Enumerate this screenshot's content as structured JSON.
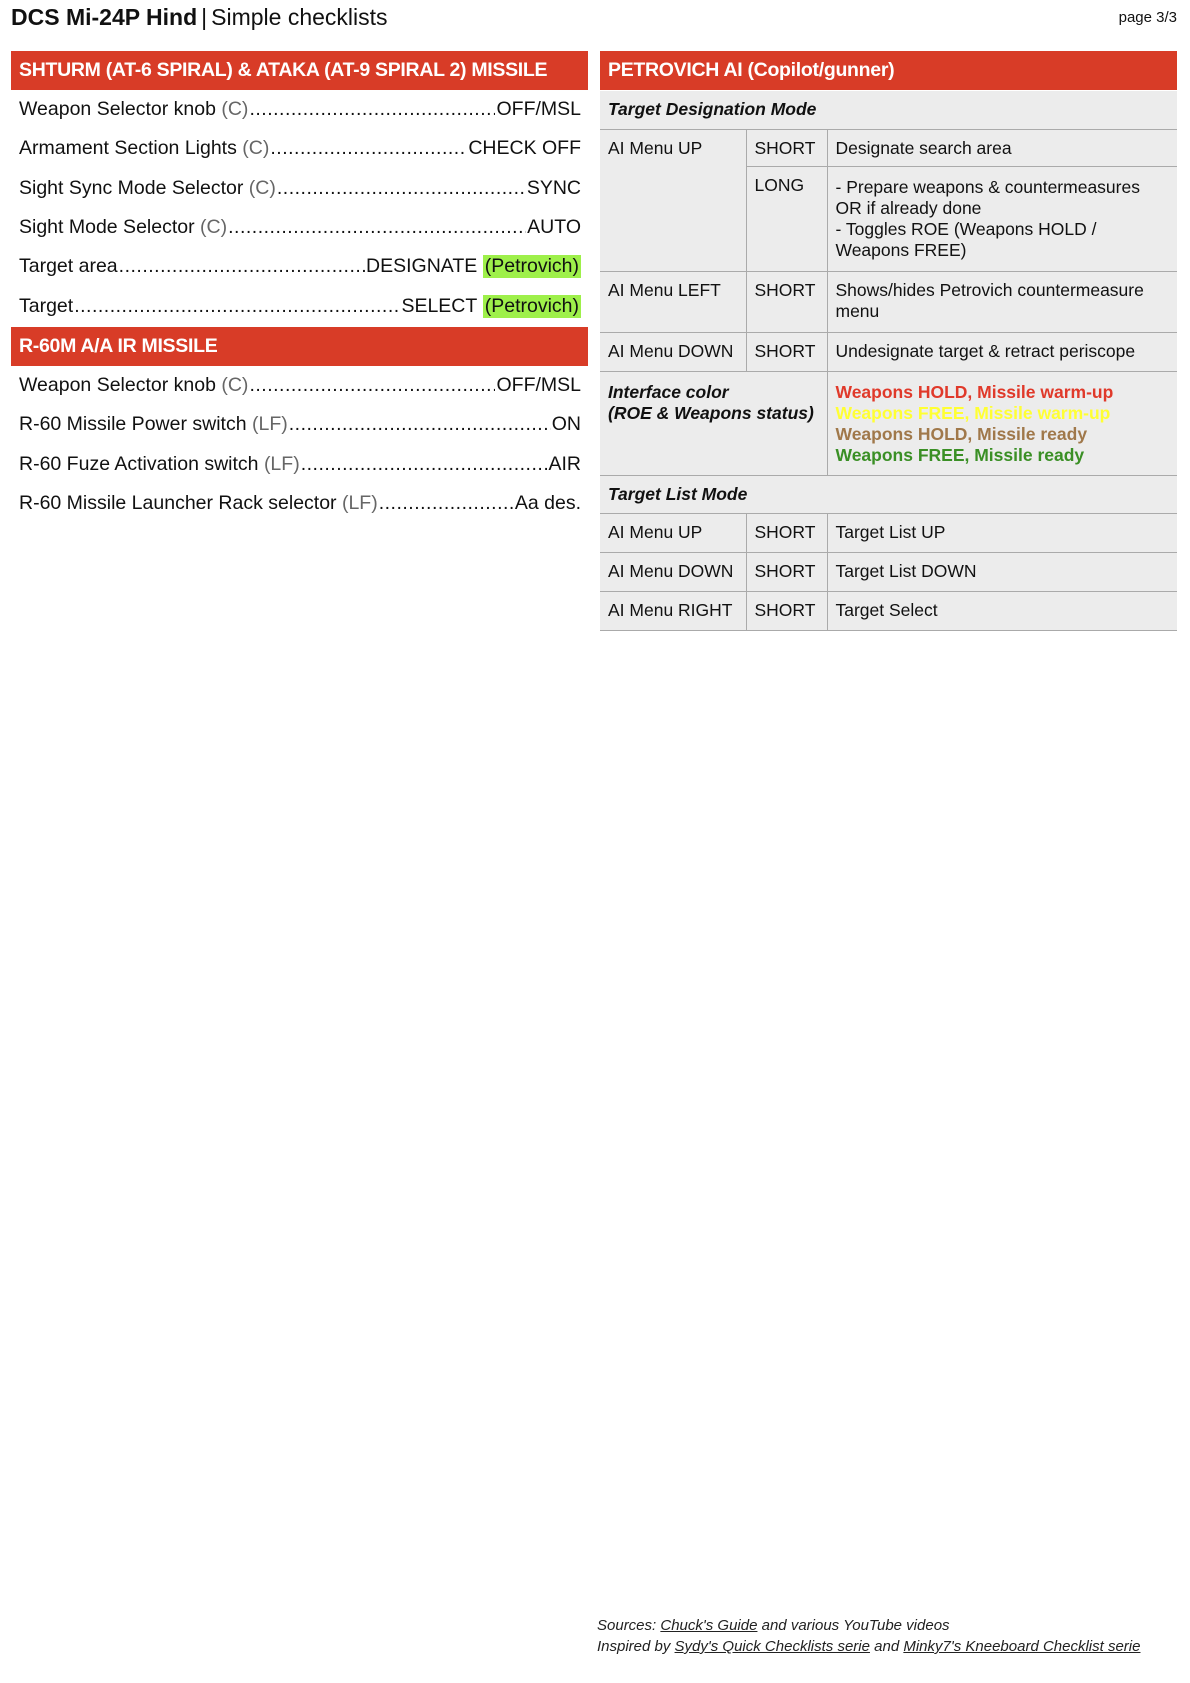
{
  "header": {
    "brand": "DCS Mi-24P Hind",
    "separator": "|",
    "subtitle": "Simple checklists",
    "page": "page 3/3"
  },
  "left": {
    "section1": {
      "title": "SHTURM (AT-6 SPIRAL) & ATAKA (AT-9 SPIRAL 2) MISSILE",
      "items": [
        {
          "label": "Weapon Selector knob",
          "tag": "(C)",
          "value": "OFF/MSL",
          "note": ""
        },
        {
          "label": "Armament Section Lights",
          "tag": "(C)",
          "value": "CHECK OFF",
          "note": ""
        },
        {
          "label": "Sight Sync Mode Selector",
          "tag": "(C)",
          "value": "SYNC",
          "note": ""
        },
        {
          "label": "Sight Mode Selector",
          "tag": "(C)",
          "value": "AUTO",
          "note": ""
        },
        {
          "label": "Target area",
          "tag": "",
          "value": "DESIGNATE",
          "note": "(Petrovich)"
        },
        {
          "label": "Target",
          "tag": "",
          "value": "SELECT",
          "note": "(Petrovich)"
        }
      ]
    },
    "section2": {
      "title": "R-60M A/A IR MISSILE",
      "items": [
        {
          "label": "Weapon Selector knob",
          "tag": "(C)",
          "value": "OFF/MSL"
        },
        {
          "label": "R-60 Missile Power switch",
          "tag": "(LF)",
          "value": "ON"
        },
        {
          "label": "R-60 Fuze Activation switch",
          "tag": "(LF)",
          "value": "AIR"
        },
        {
          "label": "R-60 Missile Launcher Rack selector",
          "tag": "(LF)",
          "value": "Aa des."
        }
      ]
    }
  },
  "right": {
    "title": "PETROVICH AI (Copilot/gunner)",
    "designation_title": "Target Designation Mode",
    "rows": [
      {
        "control": "AI Menu UP",
        "press": "SHORT",
        "action": "Designate search area"
      },
      {
        "control": "",
        "press": "LONG",
        "action": "- Prepare weapons & countermeasures OR if already done\n- Toggles ROE (Weapons HOLD / Weapons FREE)"
      },
      {
        "control": "AI Menu LEFT",
        "press": "SHORT",
        "action": "Shows/hides Petrovich countermeasure menu"
      },
      {
        "control": "AI Menu DOWN",
        "press": "SHORT",
        "action": "Undesignate target & retract periscope"
      }
    ],
    "interface_label": "Interface color\n(ROE & Weapons status)",
    "interface_colors": [
      {
        "text": "Weapons HOLD, Missile warm-up",
        "color": "#e0392a"
      },
      {
        "text": "Weapons FREE, Missile warm-up",
        "color": "#ffff33"
      },
      {
        "text": "Weapons HOLD, Missile ready",
        "color": "#a0784a"
      },
      {
        "text": "Weapons FREE, Missile ready",
        "color": "#3a8f25"
      }
    ],
    "list_title": "Target List Mode",
    "list_rows": [
      {
        "control": "AI Menu UP",
        "press": "SHORT",
        "action": "Target List UP"
      },
      {
        "control": "AI Menu DOWN",
        "press": "SHORT",
        "action": "Target List DOWN"
      },
      {
        "control": "AI Menu RIGHT",
        "press": "SHORT",
        "action": "Target Select"
      }
    ]
  },
  "footer": {
    "sources_prefix": "Sources: ",
    "sources_link": "Chuck's Guide",
    "sources_suffix": " and various YouTube videos",
    "inspired_prefix": "Inspired by ",
    "inspired_link1": "Sydy's Quick Checklists serie",
    "inspired_mid": " and ",
    "inspired_link2": "Minky7's Kneeboard Checklist serie"
  },
  "colors": {
    "header_red": "#d83c27",
    "highlight_green": "#9ef04a",
    "table_bg": "#ececec"
  }
}
